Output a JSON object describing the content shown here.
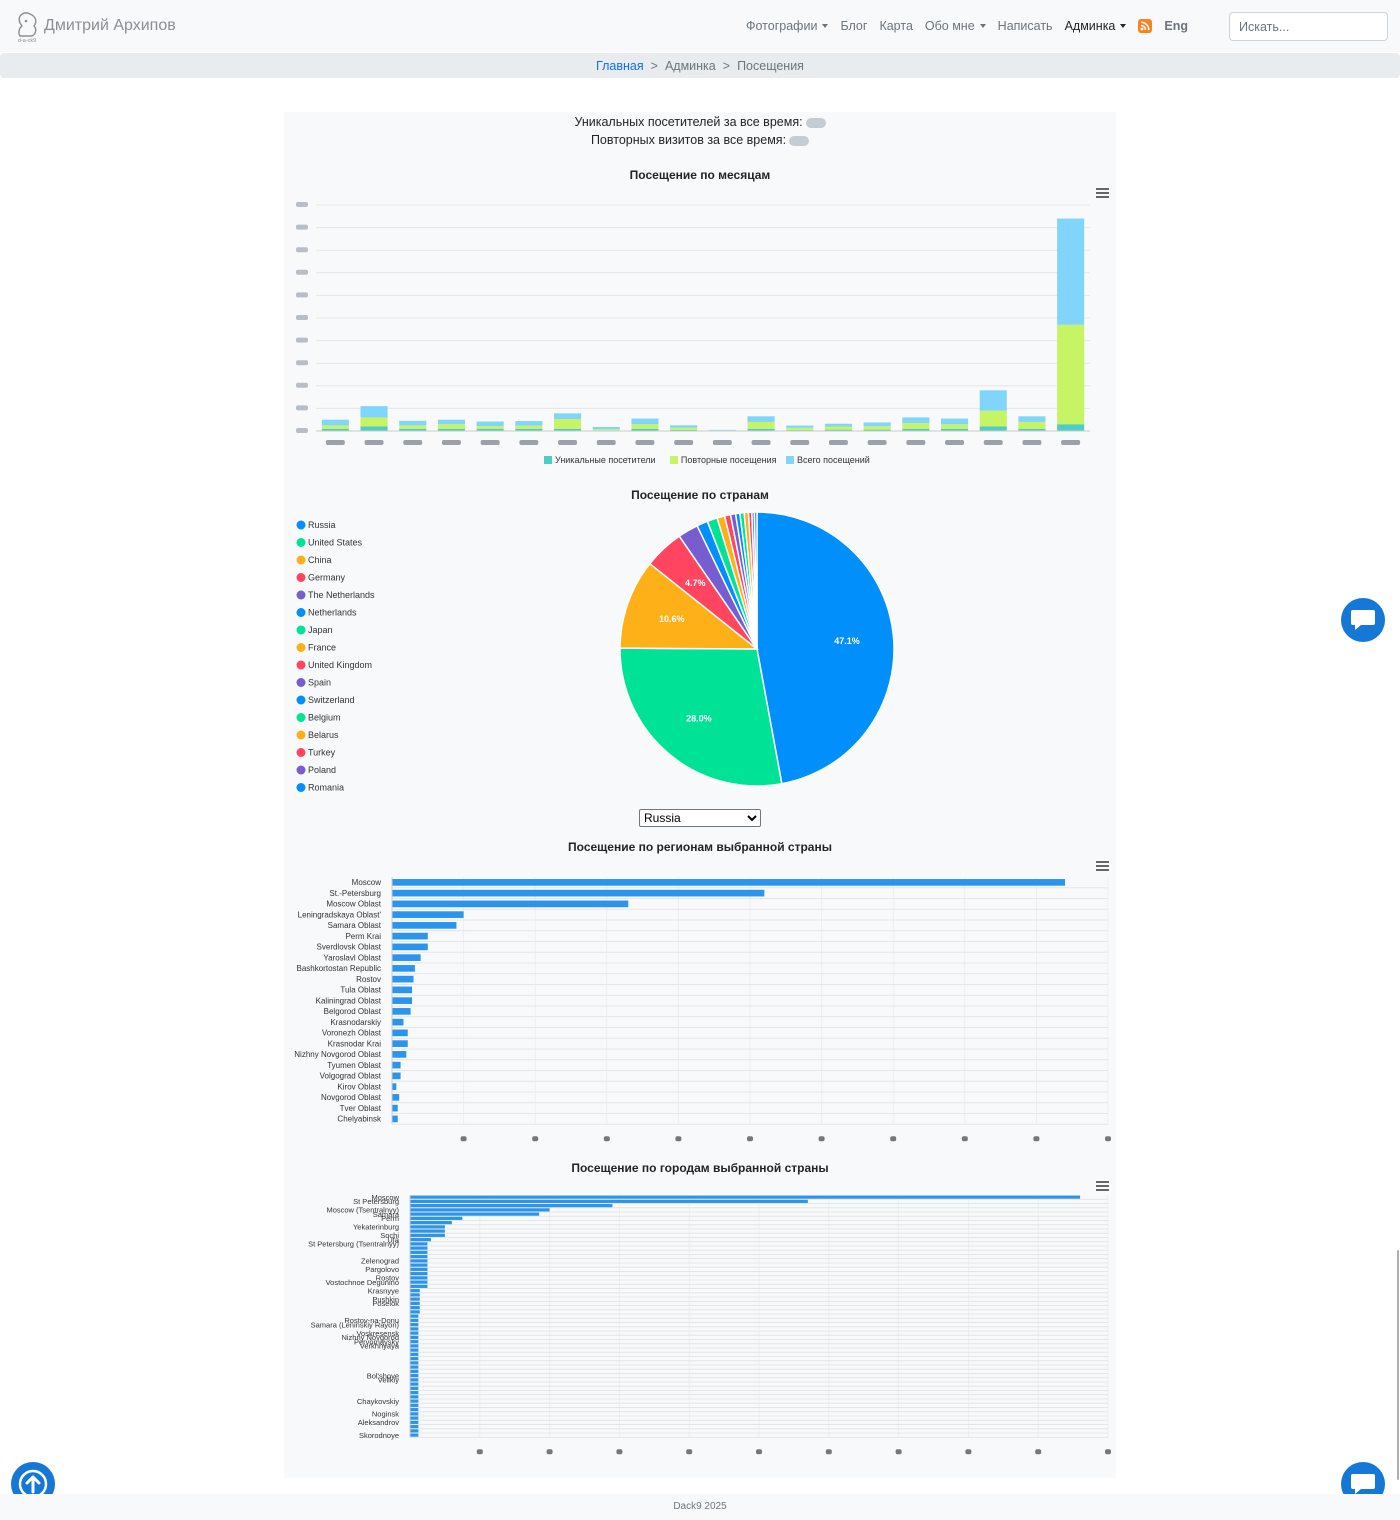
{
  "brand": {
    "name": "Дмитрий Архипов",
    "logo_text": "d-a-ck9",
    "logo_icon": "bear-head-icon"
  },
  "nav": {
    "items": [
      {
        "label": "Фотографии",
        "dropdown": true,
        "active": false,
        "bold": false
      },
      {
        "label": "Блог",
        "dropdown": false,
        "active": false,
        "bold": false
      },
      {
        "label": "Карта",
        "dropdown": false,
        "active": false,
        "bold": false
      },
      {
        "label": "Обо мне",
        "dropdown": true,
        "active": false,
        "bold": false
      },
      {
        "label": "Написать",
        "dropdown": false,
        "active": false,
        "bold": false
      },
      {
        "label": "Админка",
        "dropdown": true,
        "active": true,
        "bold": false
      }
    ],
    "rss_icon": "rss-icon",
    "lang": "Eng",
    "search_placeholder": "Искать..."
  },
  "breadcrumb": {
    "home": "Главная",
    "section": "Админка",
    "current": "Посещения",
    "separator": ">"
  },
  "stats": {
    "unique_label": "Уникальных посетителей за все время:",
    "repeat_label": "Повторных визитов за все время:"
  },
  "colors": {
    "unique": "#4ecdc4",
    "repeat": "#c7f464",
    "total": "#81d4fa",
    "bar": "#2b95ee",
    "accent": "#0d6efd"
  },
  "monthly_chart": {
    "title": "Посещение по месяцам",
    "legend": [
      "Уникальные посетители",
      "Повторные посещения",
      "Всего посещений"
    ],
    "chart_data": {
      "type": "bar",
      "stacked": true,
      "categories": [
        "",
        "",
        "",
        "",
        "",
        "",
        "",
        "",
        "",
        "",
        "",
        "",
        "",
        "",
        "",
        "",
        "",
        "",
        "",
        ""
      ],
      "series": [
        {
          "name": "Уникальные посетители",
          "values": [
            1,
            2,
            1,
            1,
            1,
            1,
            1,
            0.3,
            1,
            0.5,
            0.2,
            1,
            0.4,
            0.6,
            0.6,
            1,
            1,
            2,
            1,
            3
          ]
        },
        {
          "name": "Повторные посещения",
          "values": [
            1.5,
            4,
            1.5,
            2,
            1.2,
            1.4,
            4.3,
            0.5,
            2,
            1,
            0.1,
            3,
            1,
            1.4,
            1.5,
            2.5,
            2,
            7,
            3,
            44
          ]
        },
        {
          "name": "Всего посещений",
          "values": [
            2.5,
            5,
            2,
            2,
            2,
            2,
            2.5,
            1,
            2.5,
            1,
            0.2,
            2.5,
            1,
            1.2,
            1.7,
            2.5,
            2.5,
            9,
            2.5,
            47
          ]
        }
      ],
      "ylim": [
        0,
        100
      ],
      "grid": true,
      "legend_position": "bottom"
    }
  },
  "country_chart": {
    "title": "Посещение по странам",
    "chart_data": {
      "type": "pie",
      "labels": [
        "Russia",
        "United States",
        "China",
        "Germany",
        "The Netherlands",
        "Netherlands",
        "Japan",
        "France",
        "United Kingdom",
        "Spain",
        "Switzerland",
        "Belgium",
        "Belarus",
        "Turkey",
        "Poland",
        "Romania"
      ],
      "values": [
        47.1,
        28.0,
        10.6,
        4.7,
        2.4,
        1.3,
        1.2,
        0.9,
        0.7,
        0.6,
        0.5,
        0.5,
        0.5,
        0.4,
        0.3,
        0.3
      ],
      "data_labels": [
        "47.1%",
        "28.0%",
        "10.6%",
        "4.7%",
        "",
        "",
        "",
        "",
        "",
        "",
        "",
        "",
        "",
        "",
        "",
        ""
      ],
      "colors": [
        "#008ffb",
        "#00e396",
        "#feb019",
        "#ff4560",
        "#775dd0",
        "#008ffb",
        "#00e396",
        "#feb019",
        "#ff4560",
        "#775dd0",
        "#008ffb",
        "#00e396",
        "#feb019",
        "#ff4560",
        "#775dd0",
        "#008ffb"
      ],
      "legend_position": "left"
    }
  },
  "country_select": {
    "value": "Russia"
  },
  "regions_chart": {
    "title": "Посещение по регионам выбранной страны",
    "chart_data": {
      "type": "bar",
      "orientation": "horizontal",
      "categories": [
        "Moscow",
        "St.-Petersburg",
        "Moscow Oblast",
        "Leningradskaya Oblast'",
        "Samara Oblast",
        "Perm Krai",
        "Sverdlovsk Oblast",
        "Yaroslavl Oblast",
        "Bashkortostan Republic",
        "Rostov",
        "Tula Oblast",
        "Kaliningrad Oblast",
        "Belgorod Oblast",
        "Krasnodarskiy",
        "Voronezh Oblast",
        "Krasnodar Krai",
        "Nizhny Novgorod Oblast",
        "Tyumen Oblast",
        "Volgograd Oblast",
        "Kirov Oblast",
        "Novgorod Oblast",
        "Tver Oblast",
        "Chelyabinsk"
      ],
      "values": [
        940,
        520,
        330,
        100,
        90,
        50,
        50,
        40,
        32,
        30,
        28,
        28,
        26,
        16,
        22,
        22,
        20,
        12,
        12,
        6,
        10,
        8,
        8
      ],
      "xlim": [
        0,
        1000
      ],
      "grid": true
    }
  },
  "cities_chart": {
    "title": "Посещение по городам выбранной страны",
    "chart_data": {
      "type": "bar",
      "orientation": "horizontal",
      "categories": [
        "Moscow",
        "St Petersburg",
        "",
        "Moscow (Tsentralnyy)",
        "Samara",
        "Perm",
        "",
        "Yekaterinburg",
        "",
        "Sochi",
        "Ufa",
        "St Petersburg (Tsentralnyy)",
        "",
        "",
        "",
        "Zelenograd",
        "",
        "Pargolovo",
        "",
        "Rostov",
        "Vostochnoe Degunino",
        "",
        "Krasnyye",
        "",
        "Pushkin",
        "Poselok",
        "",
        "",
        "",
        "Rostov-na-Donu",
        "Samara (Leninskiy Rayon)",
        "",
        "Voskresensk",
        "Nizhny Novgorod",
        "Pervomaysky",
        "Verkhnyaya",
        "",
        "",
        "",
        "",
        "",
        "",
        "Bol'shoye",
        "Velikiy",
        "",
        "",
        "",
        "",
        "Chaykovskiy",
        "",
        "",
        "Noginsk",
        "",
        "Aleksandrov",
        "",
        "",
        "Skorodnoye"
      ],
      "values": [
        960,
        570,
        290,
        200,
        185,
        75,
        60,
        50,
        50,
        50,
        30,
        25,
        25,
        25,
        25,
        25,
        25,
        25,
        25,
        25,
        25,
        25,
        14,
        14,
        14,
        14,
        14,
        14,
        12,
        12,
        12,
        12,
        12,
        12,
        12,
        12,
        12,
        12,
        12,
        12,
        12,
        12,
        12,
        12,
        12,
        12,
        12,
        12,
        12,
        12,
        12,
        12,
        12,
        12,
        12,
        12,
        12
      ],
      "xlim": [
        0,
        1000
      ],
      "grid": true
    }
  },
  "footer": {
    "text": "Dack9 2025"
  },
  "floating": {
    "scroll_top_icon": "arrow-up-icon",
    "chat_icon": "chat-bubble-icon"
  }
}
